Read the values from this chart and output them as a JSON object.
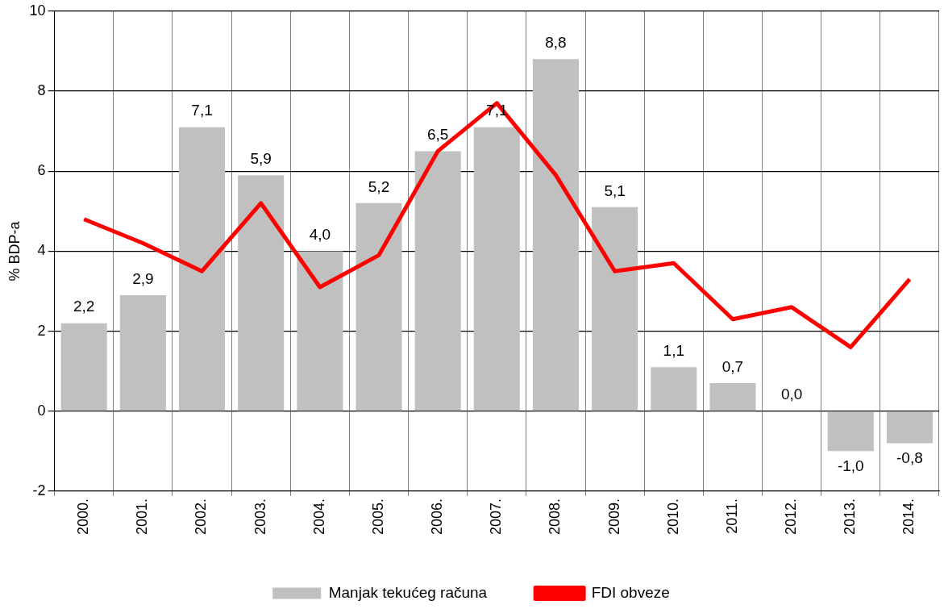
{
  "chart_data": {
    "type": "bar",
    "ylabel": "% BDP-a",
    "categories": [
      "2000.",
      "2001.",
      "2002.",
      "2003.",
      "2004.",
      "2005.",
      "2006.",
      "2007.",
      "2008.",
      "2009.",
      "2010.",
      "2011.",
      "2012.",
      "2013.",
      "2014."
    ],
    "series": [
      {
        "name": "Manjak tekućeg računa",
        "color": "#c0c0c0",
        "values": [
          2.2,
          2.9,
          7.1,
          5.9,
          4.0,
          5.2,
          6.5,
          7.1,
          8.8,
          5.1,
          1.1,
          0.7,
          0.0,
          -1.0,
          -0.8
        ],
        "value_labels": [
          "2,2",
          "2,9",
          "7,1",
          "5,9",
          "4,0",
          "5,2",
          "6,5",
          "7,1",
          "8,8",
          "5,1",
          "1,1",
          "0,7",
          "0,0",
          "-1,0",
          "-0,8"
        ]
      },
      {
        "name": "FDI obveze",
        "type": "line",
        "color": "#ff0000",
        "values": [
          4.8,
          4.2,
          3.5,
          5.2,
          3.1,
          3.9,
          6.5,
          7.7,
          5.9,
          3.5,
          3.7,
          2.3,
          2.6,
          1.6,
          3.3
        ]
      }
    ],
    "ylim": [
      -2,
      10
    ],
    "yticks": [
      -2,
      0,
      2,
      4,
      6,
      8,
      10
    ],
    "grid": true,
    "legend": "bottom",
    "marker": "none",
    "line_style": "solid"
  }
}
